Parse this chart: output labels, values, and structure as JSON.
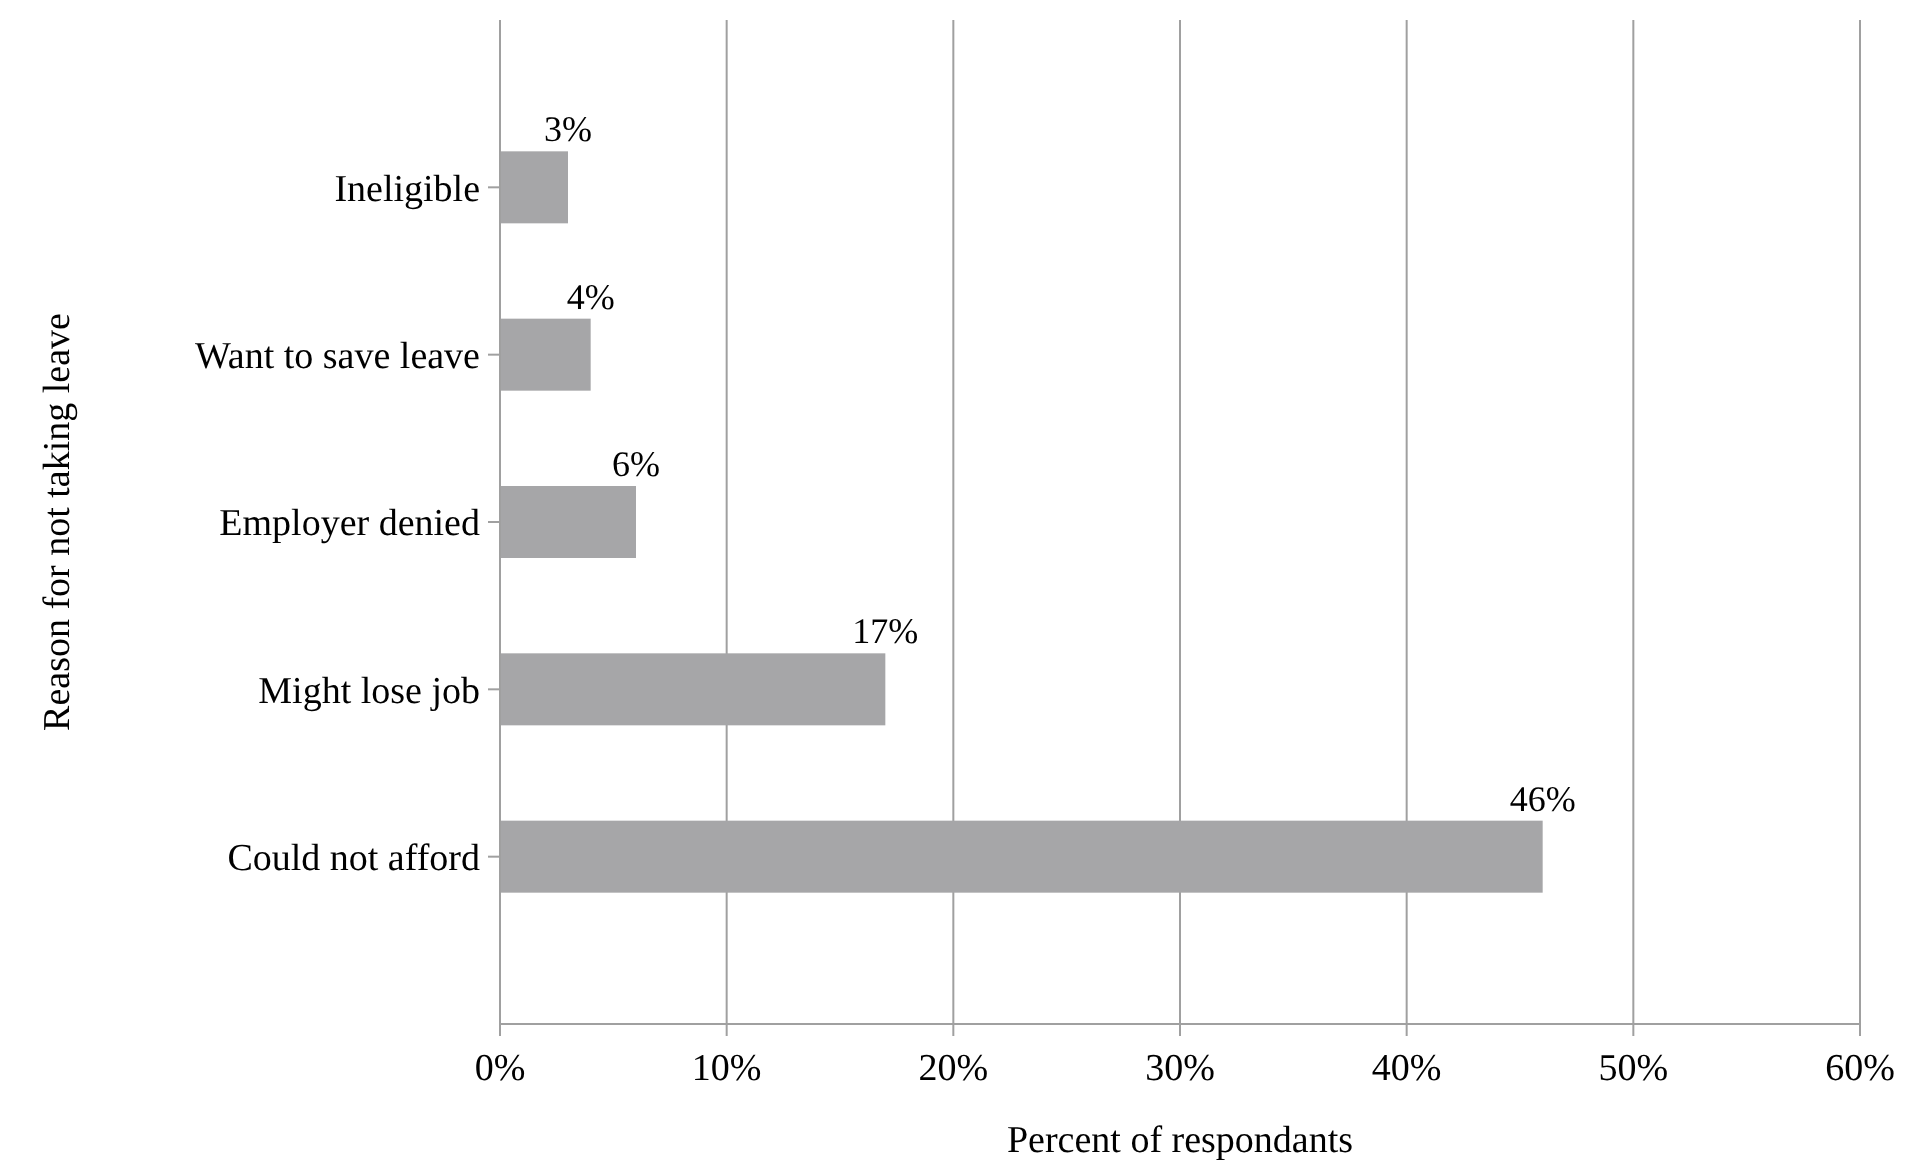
{
  "chart_data": {
    "type": "bar",
    "orientation": "horizontal",
    "xlabel": "Percent of respondants",
    "ylabel": "Reason for not taking leave",
    "categories": [
      "Ineligible",
      "Want to save leave",
      "Employer denied",
      "Might lose job",
      "Could not afford"
    ],
    "values": [
      3,
      4,
      6,
      17,
      46
    ],
    "color": "#a6a6a8",
    "value_labels": [
      "3%",
      "4%",
      "6%",
      "17%",
      "46%"
    ],
    "xlim": [
      0,
      60
    ],
    "xticks": [
      {
        "value": 0,
        "label": "0%"
      },
      {
        "value": 10,
        "label": "10%"
      },
      {
        "value": 20,
        "label": "20%"
      },
      {
        "value": 30,
        "label": "30%"
      },
      {
        "value": 40,
        "label": "40%"
      },
      {
        "value": 50,
        "label": "50%"
      },
      {
        "value": 60,
        "label": "60%"
      }
    ],
    "grid": "x"
  }
}
